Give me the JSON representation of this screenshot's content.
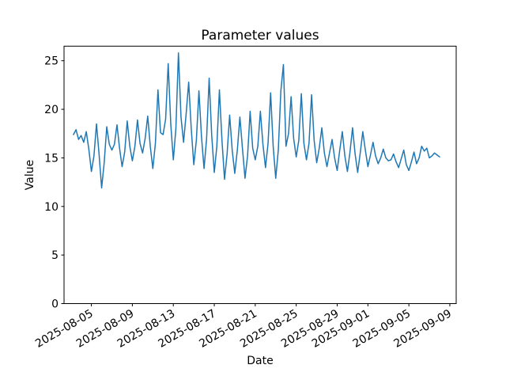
{
  "chart_data": {
    "type": "line",
    "title": "Parameter values",
    "xlabel": "Date",
    "ylabel": "Value",
    "line_color": "#1f77b4",
    "background_color": "#ffffff",
    "grid": false,
    "legend": "none",
    "x_axis_kind": "date",
    "x_start": "2025-08-03 06:00",
    "x_step_hours": 6,
    "x_start_day_offset": 2.25,
    "x_step_days": 0.25,
    "xlim_days": [
      1.33,
      39.62
    ],
    "ylim": [
      0,
      26.5
    ],
    "x_tick_rotation_deg": 30,
    "x_ticks": [
      {
        "label": "2025-08-05",
        "day": 4
      },
      {
        "label": "2025-08-09",
        "day": 8
      },
      {
        "label": "2025-08-13",
        "day": 12
      },
      {
        "label": "2025-08-17",
        "day": 16
      },
      {
        "label": "2025-08-21",
        "day": 20
      },
      {
        "label": "2025-08-25",
        "day": 24
      },
      {
        "label": "2025-08-29",
        "day": 28
      },
      {
        "label": "2025-09-01",
        "day": 31
      },
      {
        "label": "2025-09-05",
        "day": 35
      },
      {
        "label": "2025-09-09",
        "day": 39
      }
    ],
    "y_ticks": [
      {
        "label": "0",
        "value": 0
      },
      {
        "label": "5",
        "value": 5
      },
      {
        "label": "10",
        "value": 10
      },
      {
        "label": "15",
        "value": 15
      },
      {
        "label": "20",
        "value": 20
      },
      {
        "label": "25",
        "value": 25
      }
    ],
    "values": [
      17.4,
      17.9,
      16.9,
      17.3,
      16.6,
      17.7,
      15.9,
      13.6,
      15.2,
      18.5,
      15.4,
      11.9,
      14.5,
      18.2,
      16.4,
      15.8,
      16.4,
      18.4,
      16.0,
      14.1,
      15.6,
      18.8,
      16.2,
      14.7,
      16.2,
      18.9,
      16.5,
      15.5,
      17.0,
      19.3,
      16.2,
      13.9,
      16.5,
      22.0,
      17.6,
      17.4,
      19.0,
      24.7,
      18.5,
      14.8,
      18.0,
      25.8,
      19.2,
      16.6,
      19.5,
      22.8,
      18.0,
      14.3,
      16.8,
      21.9,
      17.2,
      13.9,
      17.0,
      23.2,
      17.3,
      13.5,
      16.2,
      22.0,
      16.8,
      12.8,
      15.4,
      19.4,
      15.8,
      13.4,
      15.8,
      19.2,
      16.0,
      12.9,
      15.2,
      19.8,
      16.0,
      14.8,
      16.2,
      19.8,
      16.4,
      14.0,
      16.5,
      21.7,
      16.2,
      12.9,
      15.8,
      21.9,
      24.6,
      16.2,
      17.5,
      21.3,
      17.0,
      15.1,
      16.8,
      21.6,
      16.5,
      14.8,
      16.5,
      21.5,
      16.8,
      14.5,
      16.0,
      18.1,
      15.5,
      14.1,
      15.5,
      16.9,
      15.0,
      13.7,
      15.8,
      17.7,
      15.2,
      13.6,
      15.6,
      18.1,
      15.4,
      13.5,
      15.5,
      17.7,
      15.8,
      14.1,
      15.3,
      16.6,
      15.2,
      14.4,
      15.0,
      15.9,
      15.0,
      14.7,
      14.8,
      15.4,
      14.6,
      14.0,
      14.9,
      15.8,
      14.3,
      13.7,
      14.6,
      15.6,
      14.4,
      15.0,
      16.2,
      15.7,
      16.0,
      15.0,
      15.2,
      15.5,
      15.3,
      15.1
    ]
  }
}
